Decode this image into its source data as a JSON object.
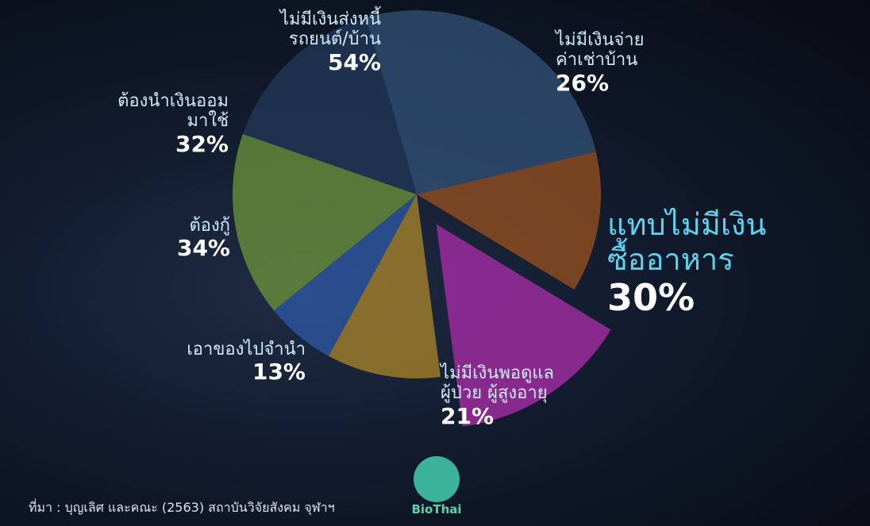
{
  "chart_data": {
    "type": "pie",
    "categories": [
      "ไม่มีเงินส่งหนี้\nรถยนต์/บ้าน",
      "ไม่มีเงินจ่าย\nค่าเช่าบ้าน",
      "แทบไม่มีเงิน\nซื้ออาหาร",
      "ไม่มีเงินพอดูแล\nผู้ป่วย ผู้สูงอายุ",
      "เอาของไปจำนำ",
      "ต้องกู้",
      "ต้องนำเงินออม\nมาใช้"
    ],
    "values": [
      54,
      26,
      30,
      21,
      13,
      34,
      32
    ],
    "value_labels": [
      "54%",
      "26%",
      "30%",
      "21%",
      "13%",
      "34%",
      "32%"
    ],
    "colors": [
      "#34557c",
      "#a0531d",
      "#8e2a94",
      "#b38a28",
      "#2f5cab",
      "#6f9a3a",
      "#223a5c"
    ],
    "source": "ที่มา : บุญเลิศ และคณะ (2563) สถาบันวิจัยสังคม จุฬาฯ",
    "logo": "BioThai"
  }
}
